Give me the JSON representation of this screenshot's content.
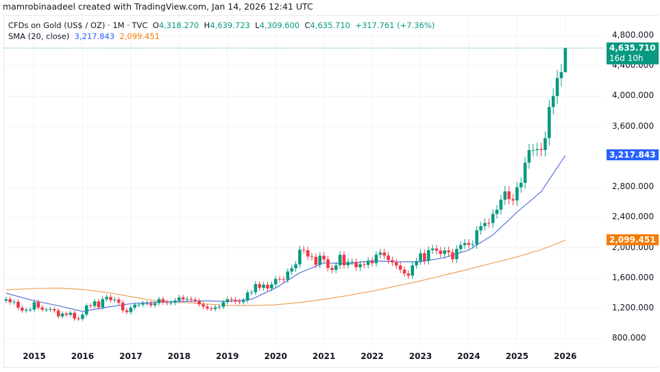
{
  "credit": "mamrobinaadeel created with TradingView.com, Jan 14, 2026 12:41 UTC",
  "legend": {
    "symbol": "CFDs on Gold (US$ / OZ) · 1M · TVC",
    "o_label": "O",
    "o": "4,318.270",
    "h_label": "H",
    "h": "4,639.723",
    "l_label": "L",
    "l": "4,309.600",
    "c_label": "C",
    "c": "4,635.710",
    "change": "+317.761 (+7.36%)",
    "sma_label": "SMA (20, close)",
    "sma1": "3,217.843",
    "sma2": "2,099.451"
  },
  "price_axis": [
    "4,800.000",
    "4,400.000",
    "4,000.000",
    "3,600.000",
    "2,800.000",
    "2,400.000",
    "2,000.000",
    "1,600.000",
    "1,200.000",
    "800.000"
  ],
  "price_axis_values": [
    4800,
    4400,
    4000,
    3600,
    2800,
    2400,
    2000,
    1600,
    1200,
    800
  ],
  "time_axis": [
    "2015",
    "2016",
    "2017",
    "2018",
    "2019",
    "2020",
    "2021",
    "2022",
    "2023",
    "2024",
    "2025",
    "2026"
  ],
  "last_price": {
    "value": "4,635.710",
    "countdown": "16d 10h",
    "color": "#089981"
  },
  "sma1_tag": {
    "value": "3,217.843",
    "color": "#2962ff"
  },
  "sma2_tag": {
    "value": "2,099.451",
    "color": "#f57c00"
  },
  "colors": {
    "up": "#089981",
    "down": "#f23645",
    "sma1": "#5673d6",
    "sma2": "#f0a15a"
  },
  "chart_data": {
    "type": "candlestick",
    "interval": "1M",
    "start": "2014-06",
    "ylim": [
      700,
      4900
    ],
    "closes": [
      1322,
      1282,
      1287,
      1210,
      1171,
      1182,
      1184,
      1283,
      1212,
      1183,
      1184,
      1190,
      1172,
      1095,
      1132,
      1115,
      1142,
      1065,
      1061,
      1118,
      1238,
      1232,
      1293,
      1215,
      1322,
      1351,
      1309,
      1316,
      1277,
      1173,
      1151,
      1211,
      1249,
      1249,
      1268,
      1268,
      1242,
      1269,
      1322,
      1280,
      1271,
      1275,
      1303,
      1345,
      1318,
      1325,
      1315,
      1299,
      1253,
      1224,
      1201,
      1192,
      1215,
      1222,
      1282,
      1321,
      1313,
      1292,
      1284,
      1305,
      1409,
      1413,
      1520,
      1472,
      1513,
      1464,
      1517,
      1589,
      1585,
      1577,
      1687,
      1730,
      1781,
      1975,
      1968,
      1886,
      1879,
      1776,
      1895,
      1847,
      1734,
      1708,
      1769,
      1907,
      1770,
      1814,
      1814,
      1743,
      1783,
      1774,
      1829,
      1797,
      1909,
      1937,
      1897,
      1837,
      1807,
      1766,
      1711,
      1660,
      1633,
      1768,
      1824,
      1928,
      1827,
      1969,
      1990,
      1963,
      1919,
      1965,
      1940,
      1849,
      1983,
      2036,
      2063,
      2039,
      2044,
      2230,
      2286,
      2327,
      2326,
      2447,
      2503,
      2634,
      2744,
      2643,
      2625,
      2798,
      2858,
      3124,
      3289,
      3289,
      3303,
      3290,
      3448,
      3858,
      4003,
      4239,
      4318,
      4635.71
    ],
    "last_candle": {
      "date": "2026-01",
      "open": 4318.27,
      "high": 4639.723,
      "low": 4309.6,
      "close": 4635.71
    },
    "sma1_line": [
      [
        "2014-06",
        1400
      ],
      [
        "2015-01",
        1300
      ],
      [
        "2015-07",
        1235
      ],
      [
        "2016-01",
        1160
      ],
      [
        "2016-07",
        1215
      ],
      [
        "2017-01",
        1262
      ],
      [
        "2017-07",
        1280
      ],
      [
        "2018-01",
        1292
      ],
      [
        "2018-07",
        1300
      ],
      [
        "2019-01",
        1292
      ],
      [
        "2019-07",
        1320
      ],
      [
        "2020-01",
        1470
      ],
      [
        "2020-07",
        1670
      ],
      [
        "2021-01",
        1800
      ],
      [
        "2021-07",
        1790
      ],
      [
        "2022-01",
        1830
      ],
      [
        "2022-07",
        1815
      ],
      [
        "2023-01",
        1815
      ],
      [
        "2023-07",
        1870
      ],
      [
        "2024-01",
        1970
      ],
      [
        "2024-07",
        2170
      ],
      [
        "2025-01",
        2470
      ],
      [
        "2025-07",
        2740
      ],
      [
        "2026-01",
        3217.843
      ]
    ],
    "sma2_line": [
      [
        "2014-06",
        1446
      ],
      [
        "2015-01",
        1462
      ],
      [
        "2015-07",
        1468
      ],
      [
        "2016-01",
        1450
      ],
      [
        "2016-07",
        1410
      ],
      [
        "2017-01",
        1355
      ],
      [
        "2017-07",
        1300
      ],
      [
        "2018-01",
        1283
      ],
      [
        "2018-07",
        1262
      ],
      [
        "2019-01",
        1238
      ],
      [
        "2019-07",
        1238
      ],
      [
        "2020-01",
        1247
      ],
      [
        "2020-07",
        1278
      ],
      [
        "2021-01",
        1320
      ],
      [
        "2021-07",
        1370
      ],
      [
        "2022-01",
        1428
      ],
      [
        "2022-07",
        1495
      ],
      [
        "2023-01",
        1563
      ],
      [
        "2023-07",
        1640
      ],
      [
        "2024-01",
        1717
      ],
      [
        "2024-07",
        1800
      ],
      [
        "2025-01",
        1880
      ],
      [
        "2025-07",
        1975
      ],
      [
        "2026-01",
        2099.451
      ]
    ]
  }
}
